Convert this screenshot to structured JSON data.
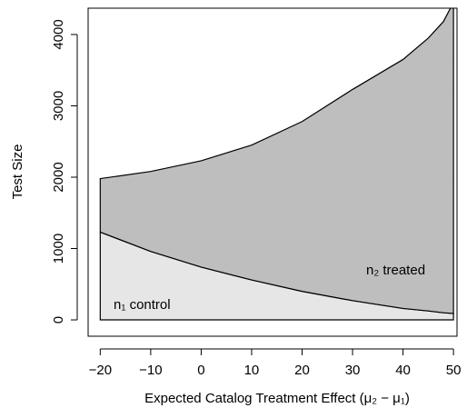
{
  "chart_data": {
    "type": "area",
    "xlabel": "Expected Catalog Treatment Effect (μ₂ − μ₁)",
    "ylabel": "Test Size",
    "x": [
      -20,
      -10,
      0,
      10,
      20,
      30,
      40,
      45,
      48,
      50
    ],
    "series": [
      {
        "name": "n₁ control",
        "color": "#e6e6e6",
        "values": [
          1230,
          960,
          740,
          560,
          400,
          270,
          160,
          125,
          100,
          90
        ]
      },
      {
        "name": "n₂ treated",
        "color": "#bebebe",
        "values": [
          750,
          1120,
          1490,
          1890,
          2380,
          2960,
          3490,
          3825,
          4080,
          4360
        ]
      }
    ],
    "stacked": true,
    "xlim": [
      -22.4,
      50.7
    ],
    "ylim": [
      -229,
      4369
    ],
    "xticks": [
      {
        "value": -20,
        "label": "−20"
      },
      {
        "value": -10,
        "label": "−10"
      },
      0,
      10,
      20,
      30,
      40,
      50
    ],
    "yticks": [
      0,
      1000,
      2000,
      3000,
      4000
    ]
  }
}
